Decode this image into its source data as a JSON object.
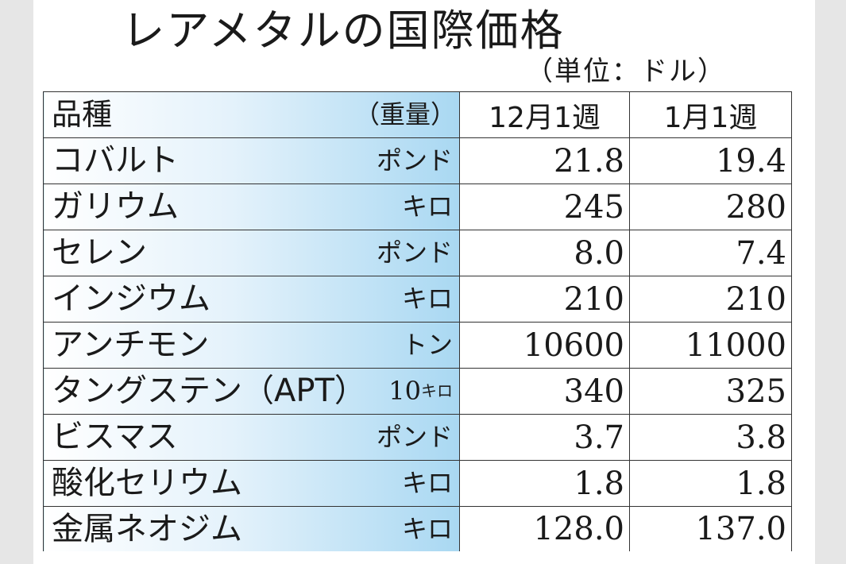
{
  "title": "レアメタルの国際価格",
  "unit_note": "（単位：ドル）",
  "table": {
    "header": {
      "item": "品種",
      "weight": "（重量）",
      "col1": "12月1週",
      "col2": "1月1週"
    },
    "rows": [
      {
        "name": "コバルト",
        "weight": "ポンド",
        "dec1": "21.8",
        "jan1": "19.4"
      },
      {
        "name": "ガリウム",
        "weight": "キロ",
        "dec1": "245",
        "jan1": "280"
      },
      {
        "name": "セレン",
        "weight": "ポンド",
        "dec1": "8.0",
        "jan1": "7.4"
      },
      {
        "name": "インジウム",
        "weight": "キロ",
        "dec1": "210",
        "jan1": "210"
      },
      {
        "name": "アンチモン",
        "weight": "トン",
        "dec1": "10600",
        "jan1": "11000"
      },
      {
        "name": "タングステン（APT）",
        "weight_num": "10",
        "weight_unit": "キロ",
        "dec1": "340",
        "jan1": "325"
      },
      {
        "name": "ビスマス",
        "weight": "ポンド",
        "dec1": "3.7",
        "jan1": "3.8"
      },
      {
        "name": "酸化セリウム",
        "weight": "キロ",
        "dec1": "1.8",
        "jan1": "1.8"
      },
      {
        "name": "金属ネオジム",
        "weight": "キロ",
        "dec1": "128.0",
        "jan1": "137.0"
      }
    ]
  }
}
